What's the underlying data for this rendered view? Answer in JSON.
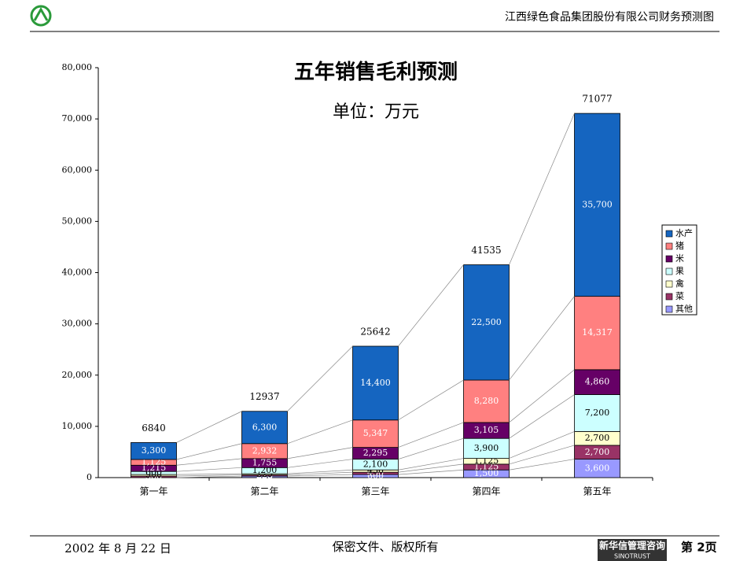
{
  "header": {
    "company": "江西绿色食品集团股份有限公司财务预测图"
  },
  "footer": {
    "date": "2002 年 8 月 22 日",
    "notice": "保密文件、版权所有",
    "brand": "新华信管理咨询",
    "brand_en": "SINOTRUST",
    "page": "第 2页"
  },
  "chart_data": {
    "type": "stacked-bar",
    "title": "五年销售毛利预测",
    "subtitle": "单位：万元",
    "categories": [
      "第一年",
      "第二年",
      "第三年",
      "第四年",
      "第五年"
    ],
    "series": [
      {
        "name": "其他",
        "color": "#9999ff",
        "values": [
          0,
          300,
          600,
          1500,
          3600
        ],
        "value_labels": [
          "0",
          "300",
          "600",
          "1,500",
          "3,600"
        ]
      },
      {
        "name": "菜",
        "color": "#993366",
        "values": [
          300,
          225,
          450,
          1125,
          2700
        ],
        "value_labels": [
          "300",
          "225",
          "450",
          "1,125",
          "2,700"
        ]
      },
      {
        "name": "禽",
        "color": "#ffffcc",
        "values": [
          300,
          225,
          450,
          1125,
          2700
        ],
        "value_labels": [
          "300",
          "225",
          "450",
          "1,125",
          "2,700"
        ]
      },
      {
        "name": "果",
        "color": "#ccffff",
        "values": [
          600,
          1200,
          2100,
          3900,
          7200
        ],
        "value_labels": [
          "600",
          "1,200",
          "2,100",
          "3,900",
          "7,200"
        ]
      },
      {
        "name": "米",
        "color": "#660066",
        "values": [
          1215,
          1755,
          2295,
          3105,
          4860
        ],
        "value_labels": [
          "1,215",
          "1,755",
          "2,295",
          "3,105",
          "4,860"
        ]
      },
      {
        "name": "猪",
        "color": "#ff8080",
        "values": [
          1125,
          2932,
          5347,
          8280,
          14317
        ],
        "value_labels": [
          "1,125",
          "2,932",
          "5,347",
          "8,280",
          "14,317"
        ]
      },
      {
        "name": "水产",
        "color": "#1565c0",
        "values": [
          3300,
          6300,
          14400,
          22500,
          35700
        ],
        "value_labels": [
          "3,300",
          "6,300",
          "14,400",
          "22,500",
          "35,700"
        ]
      }
    ],
    "totals": [
      6840,
      12937,
      25642,
      41535,
      71077
    ],
    "ylim": [
      0,
      80000
    ],
    "yticks": [
      0,
      {
        "value": 10000,
        "label": "10,000"
      },
      {
        "value": 20000,
        "label": "20,000"
      },
      {
        "value": 30000,
        "label": "30,000"
      },
      {
        "value": 40000,
        "label": "40,000"
      },
      {
        "value": 50000,
        "label": "50,000"
      },
      {
        "value": 60000,
        "label": "60,000"
      },
      {
        "value": 70000,
        "label": "70,000"
      },
      {
        "value": 80000,
        "label": "80,000"
      }
    ],
    "legend": "right"
  }
}
